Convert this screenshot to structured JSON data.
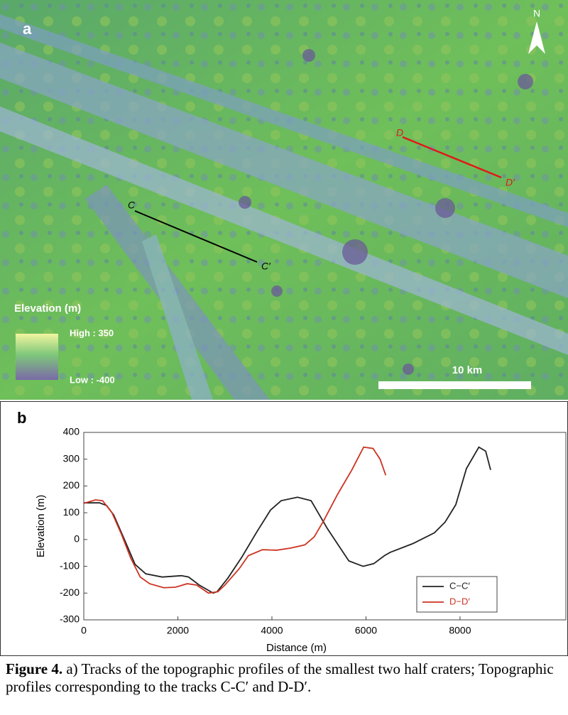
{
  "map": {
    "panel_label": "a",
    "north": "N",
    "track_c_start": "C",
    "track_c_end": "C′",
    "track_d_start": "D",
    "track_d_end": "D′",
    "legend_title": "Elevation (m)",
    "legend_high": "High : 350",
    "legend_low": "Low : -400",
    "scale_bar": "10 km"
  },
  "chart_data": {
    "type": "line",
    "panel_label": "b",
    "x_label": "Distance (m)",
    "y_label": "Elevation (m)",
    "xlim": [
      0,
      10250
    ],
    "ylim": [
      -300,
      400
    ],
    "xticks": [
      0,
      2000,
      4000,
      6000,
      8000
    ],
    "yticks": [
      -300,
      -200,
      -100,
      0,
      100,
      200,
      300,
      400
    ],
    "series": [
      {
        "name": "C−C′",
        "color": "#222222",
        "x": [
          0,
          333,
          485,
          636,
          864,
          1091,
          1318,
          1667,
          2076,
          2227,
          2455,
          2750,
          2833,
          3060,
          3363,
          3667,
          3970,
          4197,
          4545,
          4833,
          5182,
          5636,
          5939,
          6166,
          6394,
          6515,
          7000,
          7455,
          7682,
          7909,
          8136,
          8400,
          8545,
          8650
        ],
        "values": [
          137,
          137,
          127,
          92,
          0,
          -93,
          -128,
          -140,
          -135,
          -140,
          -170,
          -200,
          -195,
          -145,
          -65,
          25,
          110,
          145,
          158,
          145,
          40,
          -80,
          -100,
          -90,
          -60,
          -48,
          -15,
          25,
          65,
          130,
          265,
          345,
          330,
          260
        ]
      },
      {
        "name": "D−D′",
        "color": "#cc3322",
        "x": [
          0,
          250,
          400,
          600,
          800,
          1000,
          1200,
          1400,
          1700,
          1950,
          2200,
          2400,
          2650,
          2850,
          3000,
          3300,
          3500,
          3800,
          4100,
          4400,
          4700,
          4900,
          5100,
          5400,
          5700,
          5950,
          6150,
          6300,
          6420
        ],
        "values": [
          135,
          148,
          145,
          100,
          20,
          -70,
          -140,
          -165,
          -180,
          -178,
          -165,
          -170,
          -200,
          -195,
          -170,
          -110,
          -60,
          -38,
          -40,
          -32,
          -20,
          10,
          70,
          170,
          260,
          345,
          340,
          300,
          240
        ]
      }
    ]
  },
  "caption": {
    "label": "Figure 4.",
    "text": "a) Tracks of the topographic profiles of the smallest two half craters; Topographic profiles corresponding to the tracks C-C′ and D-D′."
  }
}
